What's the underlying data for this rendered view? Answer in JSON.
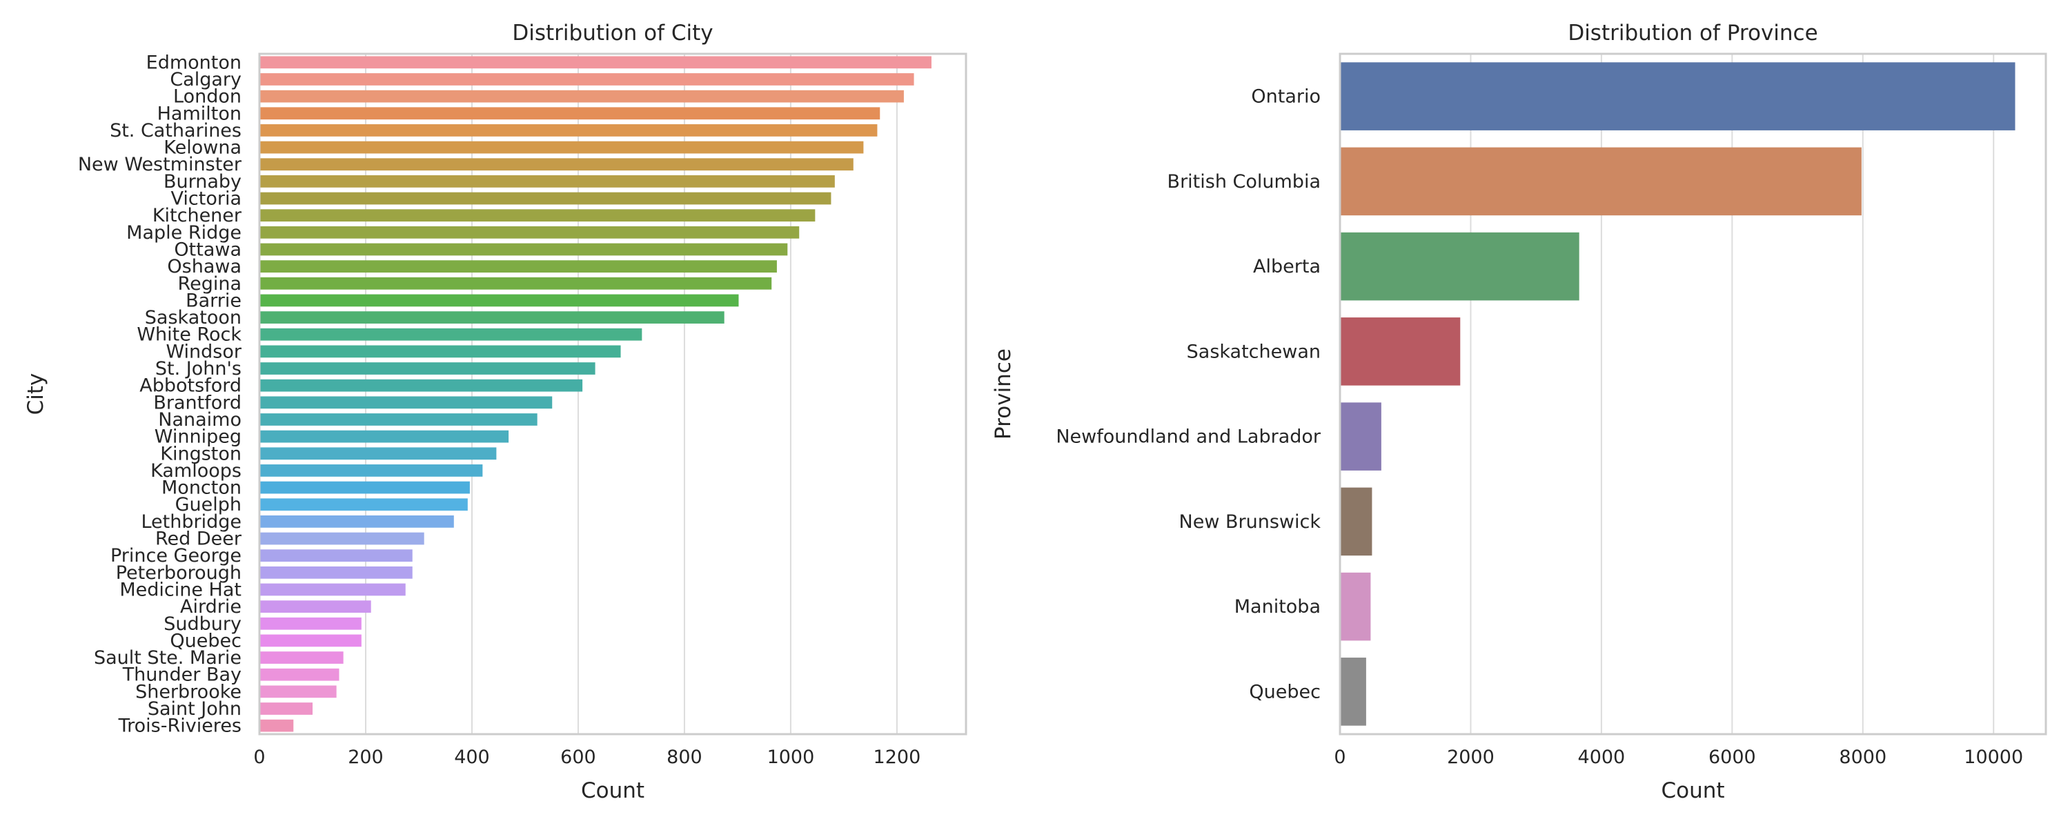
{
  "chart_data": [
    {
      "type": "bar",
      "orientation": "horizontal",
      "title": "Distribution of City",
      "xlabel": "Count",
      "ylabel": "City",
      "xlim": [
        0,
        1330
      ],
      "xticks": [
        0,
        200,
        400,
        600,
        800,
        1000,
        1200
      ],
      "grid": true,
      "categories": [
        "Edmonton",
        "Calgary",
        "London",
        "Hamilton",
        "St. Catharines",
        "Kelowna",
        "New Westminster",
        "Burnaby",
        "Victoria",
        "Kitchener",
        "Maple Ridge",
        "Ottawa",
        "Oshawa",
        "Regina",
        "Barrie",
        "Saskatoon",
        "White Rock",
        "Windsor",
        "St. John's",
        "Abbotsford",
        "Brantford",
        "Nanaimo",
        "Winnipeg",
        "Kingston",
        "Kamloops",
        "Moncton",
        "Guelph",
        "Lethbridge",
        "Red Deer",
        "Prince George",
        "Peterborough",
        "Medicine Hat",
        "Airdrie",
        "Sudbury",
        "Quebec",
        "Sault Ste. Marie",
        "Thunder Bay",
        "Sherbrooke",
        "Saint John",
        "Trois-Rivieres"
      ],
      "values": [
        1265,
        1232,
        1213,
        1168,
        1163,
        1137,
        1118,
        1083,
        1076,
        1046,
        1016,
        994,
        974,
        964,
        902,
        875,
        720,
        680,
        632,
        608,
        551,
        523,
        469,
        446,
        420,
        396,
        392,
        366,
        310,
        288,
        288,
        275,
        210,
        192,
        192,
        158,
        150,
        145,
        100,
        64
      ],
      "colors": [
        "#f1959d",
        "#ef9688",
        "#ea9877",
        "#e48e57",
        "#dd964e",
        "#d49a4b",
        "#c59b49",
        "#b59f47",
        "#a79f44",
        "#9ca444",
        "#94a644",
        "#88a944",
        "#7eac44",
        "#72ae44",
        "#56b44a",
        "#4eb171",
        "#48b18a",
        "#45b096",
        "#45ae9f",
        "#45aea5",
        "#47aeaf",
        "#48aeb5",
        "#4aaebe",
        "#4daec7",
        "#4daed0",
        "#4caedd",
        "#53b2e3",
        "#79ace9",
        "#9cadea",
        "#a9a4ed",
        "#b0a1ef",
        "#be9cef",
        "#cc96ee",
        "#e28fee",
        "#e78bec",
        "#ea8ee2",
        "#ec93dc",
        "#ed96d4",
        "#ee94c8",
        "#ef93b5"
      ]
    },
    {
      "type": "bar",
      "orientation": "horizontal",
      "title": "Distribution of Province",
      "xlabel": "Count",
      "ylabel": "Province",
      "xlim": [
        0,
        10800
      ],
      "xticks": [
        0,
        2000,
        4000,
        6000,
        8000,
        10000
      ],
      "grid": true,
      "categories": [
        "Ontario",
        "British Columbia",
        "Alberta",
        "Saskatchewan",
        "Newfoundland and Labrador",
        "New Brunswick",
        "Manitoba",
        "Quebec"
      ],
      "values": [
        10330,
        7980,
        3660,
        1840,
        632,
        490,
        469,
        400
      ],
      "colors": [
        "#5a76a8",
        "#cd8862",
        "#5fa06f",
        "#b85a62",
        "#887bb2",
        "#8c7766",
        "#d194c3",
        "#8c8c8c"
      ]
    }
  ]
}
